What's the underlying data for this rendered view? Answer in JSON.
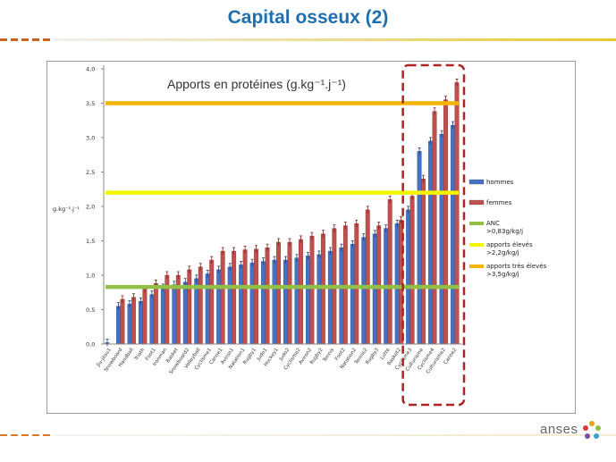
{
  "slide": {
    "title": "Capital osseux (2)",
    "logo_text": "anses"
  },
  "chart_data": {
    "type": "bar",
    "title": "Apports en protéines (g.kg⁻¹.j⁻¹)",
    "ylabel": "g.kg⁻¹.j⁻¹",
    "xlabel": "",
    "ylim": [
      0,
      4
    ],
    "y_ticks": [
      "0,0",
      "0,5",
      "1,0",
      "1,5",
      "2,0",
      "2,5",
      "3,0",
      "3,5",
      "4,0"
    ],
    "y_tick_values": [
      0,
      0.5,
      1.0,
      1.5,
      2.0,
      2.5,
      3.0,
      3.5,
      4.0
    ],
    "grid": false,
    "legend_position": "right",
    "categories": [
      "Jiu-jitsu1",
      "Snowboard",
      "Handball",
      "Triath",
      "Foot1",
      "Ironman",
      "Basket",
      "Snowboard2",
      "Volleyball",
      "Cyclisme1",
      "Canoe1",
      "Aviron1",
      "Natation1",
      "Rugby1",
      "Judo1",
      "Hockey1",
      "Judo2",
      "Cyclisme2",
      "Aviron2",
      "Rugby2",
      "Tennis",
      "Foot2",
      "Natation2",
      "Tennis2",
      "Rugby3",
      "Lutte",
      "Basket2",
      "Cyclisme3",
      "Culturisme",
      "Cyclisme4",
      "Culturisme2",
      "Canoe2"
    ],
    "series": [
      {
        "name": "hommes",
        "color": "#4472c4",
        "values": [
          0.02,
          0.55,
          0.58,
          0.62,
          0.72,
          0.82,
          0.86,
          0.9,
          0.95,
          1.02,
          1.08,
          1.12,
          1.15,
          1.18,
          1.2,
          1.22,
          1.22,
          1.25,
          1.28,
          1.3,
          1.35,
          1.4,
          1.45,
          1.55,
          1.6,
          1.68,
          1.75,
          1.95,
          2.8,
          2.95,
          3.05,
          3.18
        ]
      },
      {
        "name": "femmes",
        "color": "#c0504d",
        "values": [
          null,
          0.65,
          0.68,
          0.8,
          0.88,
          1.0,
          1.0,
          1.08,
          1.12,
          1.22,
          1.35,
          1.35,
          1.37,
          1.38,
          1.4,
          1.48,
          1.48,
          1.52,
          1.57,
          1.6,
          1.68,
          1.72,
          1.75,
          1.95,
          1.72,
          2.1,
          1.8,
          2.15,
          2.4,
          3.38,
          3.55,
          3.8
        ]
      }
    ],
    "reference_lines": [
      {
        "name": "ANC >0,83g/kg/j",
        "value": 0.83,
        "color": "#92c047"
      },
      {
        "name": "apports élevés >2,2g/kg/j",
        "value": 2.2,
        "color": "#f5f500"
      },
      {
        "name": "apports très élevés >3,5g/kg/j",
        "value": 3.5,
        "color": "#f5b400"
      }
    ],
    "legend": [
      {
        "label": "hommes",
        "kind": "bar",
        "color": "#4472c4"
      },
      {
        "label": "femmes",
        "kind": "bar",
        "color": "#c0504d"
      },
      {
        "label_lines": [
          "ANC",
          ">0,83g/kg/j"
        ],
        "kind": "line",
        "color": "#92c047"
      },
      {
        "label_lines": [
          "apports élevés",
          ">2,2g/kg/j"
        ],
        "kind": "line",
        "color": "#f5f500"
      },
      {
        "label_lines": [
          "apports très élevés",
          ">3,5g/kg/j"
        ],
        "kind": "line",
        "color": "#f5b400"
      }
    ],
    "highlight": {
      "from_category": "Cyclisme3",
      "to_category": "Canoe2",
      "style": "dashed",
      "color": "#b22222"
    }
  }
}
